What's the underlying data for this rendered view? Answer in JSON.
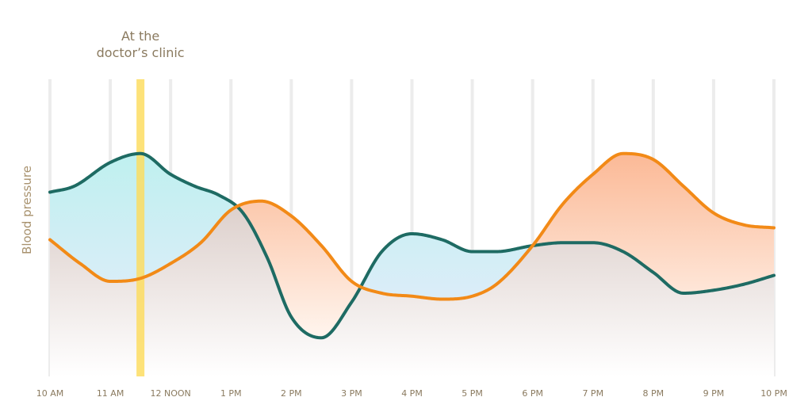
{
  "chart_data": {
    "type": "line",
    "title": "",
    "xlabel": "",
    "ylabel": "Blood pressure",
    "categories": [
      "10 AM",
      "11 AM",
      "12 NOON",
      "1 PM",
      "2 PM",
      "3 PM",
      "4 PM",
      "5 PM",
      "6 PM",
      "7 PM",
      "8 PM",
      "9 PM",
      "10 PM"
    ],
    "x_range": [
      10,
      22
    ],
    "ylim": [
      0,
      100
    ],
    "grid": "vertical",
    "annotation": {
      "text_line1": "At the",
      "text_line2": "doctor’s clinic",
      "x": 11.5
    },
    "series": [
      {
        "color": "#1e6b63",
        "x": [
          10,
          10.4,
          11,
          11.5,
          12,
          12.4,
          12.8,
          13.2,
          13.6,
          14,
          14.5,
          15,
          15.5,
          16,
          16.5,
          17,
          17.4,
          18,
          18.5,
          19,
          19.5,
          20,
          20.5,
          21,
          21.5,
          22
        ],
        "y": [
          62,
          64,
          72,
          75,
          68,
          64,
          61,
          55,
          40,
          20,
          13,
          25,
          42,
          48,
          46,
          42,
          42,
          44,
          45,
          45,
          42,
          35,
          28,
          29,
          31,
          34
        ]
      },
      {
        "color": "#f28a17",
        "x": [
          10,
          10.5,
          11,
          11.5,
          12,
          12.5,
          13,
          13.5,
          14,
          14.5,
          15,
          15.5,
          16,
          16.5,
          17,
          17.4,
          18,
          18.5,
          19,
          19.5,
          20,
          20.5,
          21,
          21.5,
          22
        ],
        "y": [
          46,
          38,
          32,
          33,
          38,
          45,
          56,
          59,
          54,
          44,
          32,
          28,
          27,
          26,
          27,
          31,
          44,
          58,
          68,
          75,
          73,
          64,
          55,
          51,
          50
        ]
      }
    ]
  }
}
